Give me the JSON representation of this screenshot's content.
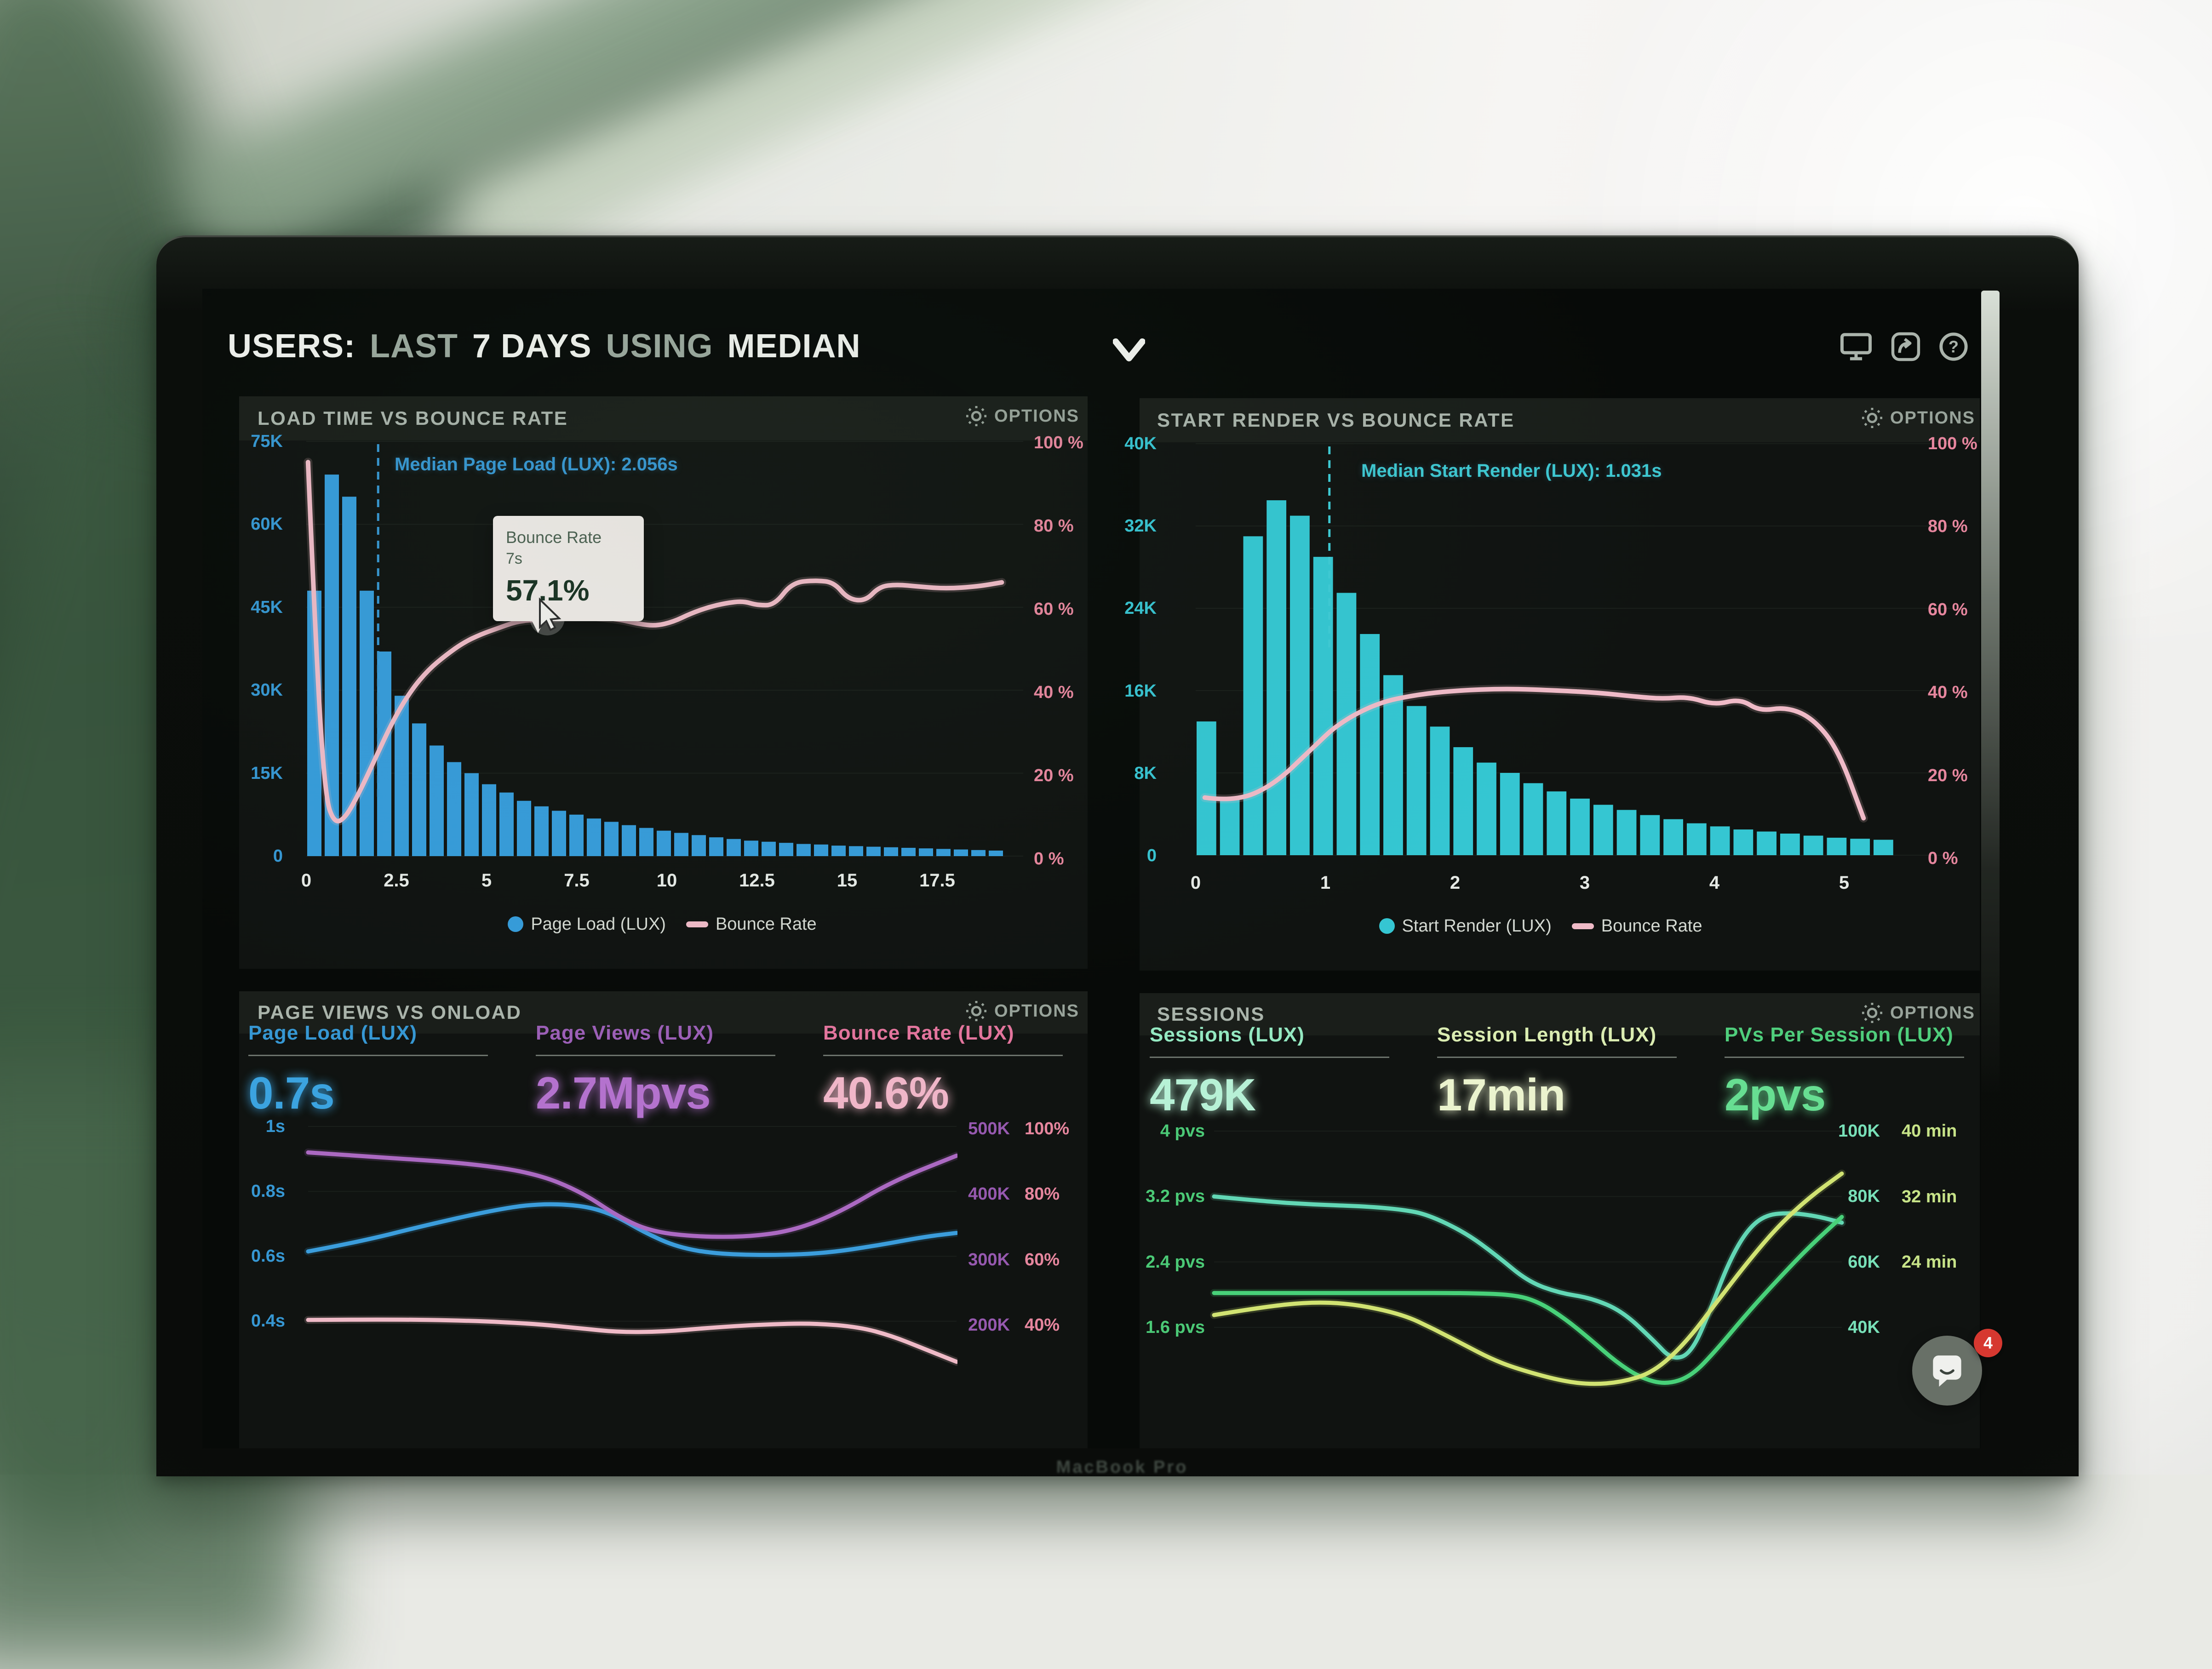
{
  "header": {
    "title_parts": [
      {
        "text": "USERS: ",
        "muted": false
      },
      {
        "text": "LAST ",
        "muted": true
      },
      {
        "text": "7 DAYS ",
        "muted": false
      },
      {
        "text": "USING ",
        "muted": true
      },
      {
        "text": "MEDIAN",
        "muted": false
      }
    ],
    "help_glyph": "?"
  },
  "panels": [
    {
      "title": "LOAD TIME VS BOUNCE RATE",
      "options_label": "OPTIONS",
      "annotation": "Median Page Load (LUX): 2.056s",
      "axis_left": [
        "75K",
        "60K",
        "45K",
        "30K",
        "15K",
        "0"
      ],
      "axis_right": [
        "100 %",
        "80 %",
        "60 %",
        "40 %",
        "20 %",
        "0 %"
      ],
      "axis_x": [
        "0",
        "2.5",
        "5",
        "7.5",
        "10",
        "12.5",
        "15",
        "17.5"
      ],
      "legend": [
        {
          "label": "Page Load (LUX)",
          "swatch": "dot",
          "color": "#2a9fe6"
        },
        {
          "label": "Bounce Rate",
          "swatch": "dash",
          "color": "#f7bac9"
        }
      ],
      "tooltip": {
        "title": "Bounce Rate",
        "x_value": "7s",
        "value": "57.1%"
      }
    },
    {
      "title": "START RENDER VS BOUNCE RATE",
      "options_label": "OPTIONS",
      "annotation": "Median Start Render (LUX): 1.031s",
      "axis_left": [
        "40K",
        "32K",
        "24K",
        "16K",
        "8K",
        "0"
      ],
      "axis_right": [
        "100 %",
        "80 %",
        "60 %",
        "40 %",
        "20 %",
        "0 %"
      ],
      "axis_x": [
        "0",
        "1",
        "2",
        "3",
        "4",
        "5"
      ],
      "legend": [
        {
          "label": "Start Render (LUX)",
          "swatch": "dot",
          "color": "#25ccd9"
        },
        {
          "label": "Bounce Rate",
          "swatch": "dash",
          "color": "#f7bac9"
        }
      ]
    },
    {
      "title": "PAGE VIEWS VS ONLOAD",
      "options_label": "OPTIONS",
      "metrics": [
        {
          "label": "Page Load (LUX)",
          "value": "0.7s",
          "lc": "#2b9ade",
          "vc": "#2fa6ec"
        },
        {
          "label": "Page Views (LUX)",
          "value": "2.7Mpvs",
          "lc": "#a05cc0",
          "vc": "#bb6fd9"
        },
        {
          "label": "Bounce Rate (LUX)",
          "value": "40.6%",
          "lc": "#f0729f",
          "vc": "#f9b6cb"
        }
      ],
      "axis_left": [
        "1s",
        "0.8s",
        "0.6s",
        "0.4s"
      ],
      "axis_right_k": [
        "500K",
        "400K",
        "300K",
        "200K"
      ],
      "axis_right_pct": [
        "100%",
        "80%",
        "60%",
        "40%"
      ]
    },
    {
      "title": "SESSIONS",
      "options_label": "OPTIONS",
      "metrics": [
        {
          "label": "Sessions (LUX)",
          "value": "479K",
          "lc": "#8deec1",
          "vc": "#b4f6d7"
        },
        {
          "label": "Session Length (LUX)",
          "value": "17min",
          "lc": "#dcf0ad",
          "vc": "#eef7cd"
        },
        {
          "label": "PVs Per Session (LUX)",
          "value": "2pvs",
          "lc": "#43d476",
          "vc": "#5ce48e"
        }
      ],
      "axis_left": [
        "4 pvs",
        "3.2 pvs",
        "2.4 pvs",
        "1.6 pvs"
      ],
      "axis_right_k": [
        "100K",
        "80K",
        "60K",
        "40K"
      ],
      "axis_right_min": [
        "40 min",
        "32 min",
        "24 min"
      ]
    }
  ],
  "chat": {
    "badge": "4"
  },
  "bezel": {
    "text": "MacBook Pro"
  },
  "chart_data": [
    {
      "type": "bar",
      "title": "LOAD TIME VS BOUNCE RATE",
      "x_unit": "seconds",
      "xlim": [
        0,
        20
      ],
      "x_ticks": [
        0,
        2.5,
        5,
        7.5,
        10,
        12.5,
        15,
        17.5
      ],
      "y_left": {
        "label": "Page Load (LUX) sessions",
        "max": 75000,
        "ticks": [
          75000,
          60000,
          45000,
          30000,
          15000,
          0
        ]
      },
      "y_right": {
        "label": "Bounce Rate %",
        "max": 100,
        "ticks": [
          100,
          80,
          60,
          40,
          20,
          0
        ]
      },
      "bars": {
        "name": "Page Load (LUX)",
        "color": "#2a9fe6",
        "bin_width_s": 0.5,
        "values_thousands": [
          48,
          69,
          65,
          48,
          37,
          29,
          24,
          20,
          17,
          15,
          13,
          11.5,
          10,
          9,
          8.2,
          7.5,
          6.8,
          6.2,
          5.6,
          5.1,
          4.6,
          4.2,
          3.8,
          3.4,
          3.1,
          2.8,
          2.6,
          2.4,
          2.2,
          2.1,
          1.9,
          1.8,
          1.7,
          1.6,
          1.5,
          1.4,
          1.3,
          1.2,
          1.1,
          1.0
        ]
      },
      "line": {
        "name": "Bounce Rate",
        "color": "#f7bac9",
        "points_s_pct": [
          [
            0.05,
            95
          ],
          [
            0.3,
            45
          ],
          [
            0.55,
            14
          ],
          [
            0.8,
            8
          ],
          [
            1.1,
            9
          ],
          [
            1.5,
            15
          ],
          [
            2,
            24
          ],
          [
            2.5,
            33
          ],
          [
            3,
            40
          ],
          [
            3.5,
            45
          ],
          [
            4,
            48.5
          ],
          [
            4.5,
            51.5
          ],
          [
            5,
            53.5
          ],
          [
            5.5,
            55
          ],
          [
            6,
            56.5
          ],
          [
            6.5,
            57
          ],
          [
            7,
            57.1
          ],
          [
            7.5,
            58
          ],
          [
            8,
            58
          ],
          [
            8.5,
            57.5
          ],
          [
            9,
            57
          ],
          [
            9.5,
            56
          ],
          [
            10,
            55.5
          ],
          [
            10.5,
            56.5
          ],
          [
            11,
            58.5
          ],
          [
            11.5,
            60
          ],
          [
            12,
            61
          ],
          [
            12.5,
            61.5
          ],
          [
            12.9,
            60.5
          ],
          [
            13.4,
            60.5
          ],
          [
            13.9,
            66
          ],
          [
            14.6,
            66.5
          ],
          [
            15.1,
            66
          ],
          [
            15.5,
            62
          ],
          [
            16,
            61.5
          ],
          [
            16.4,
            65
          ],
          [
            16.9,
            65.5
          ],
          [
            17.5,
            65
          ],
          [
            18.3,
            64.5
          ],
          [
            19.2,
            65
          ],
          [
            19.9,
            66
          ]
        ]
      },
      "median": {
        "x_s": 2.056,
        "label": "Median Page Load (LUX): 2.056s",
        "color": "#2b9ade"
      },
      "tooltip": {
        "at": "7s",
        "value_pct": 57.1
      }
    },
    {
      "type": "bar",
      "title": "START RENDER VS BOUNCE RATE",
      "x_unit": "seconds",
      "xlim": [
        0,
        5.4
      ],
      "x_ticks": [
        0,
        1,
        2,
        3,
        4,
        5
      ],
      "y_left": {
        "label": "Start Render (LUX) sessions",
        "max": 40000,
        "ticks": [
          40000,
          32000,
          24000,
          16000,
          8000,
          0
        ]
      },
      "y_right": {
        "label": "Bounce Rate %",
        "max": 100,
        "ticks": [
          100,
          80,
          60,
          40,
          20,
          0
        ]
      },
      "bars": {
        "name": "Start Render (LUX)",
        "color": "#25ccd9",
        "bin_width_s": 0.18,
        "values_thousands": [
          13,
          5.5,
          31,
          34.5,
          33,
          29,
          25.5,
          21.5,
          17.5,
          14.5,
          12.5,
          10.5,
          9,
          8,
          7,
          6.2,
          5.5,
          4.9,
          4.4,
          3.9,
          3.5,
          3.1,
          2.8,
          2.5,
          2.3,
          2.1,
          1.9,
          1.7,
          1.6,
          1.5
        ]
      },
      "line": {
        "name": "Bounce Rate",
        "color": "#f7bac9",
        "points_s_pct": [
          [
            0.07,
            14
          ],
          [
            0.3,
            13
          ],
          [
            0.6,
            17
          ],
          [
            0.9,
            26
          ],
          [
            1.1,
            32
          ],
          [
            1.4,
            37
          ],
          [
            1.7,
            39
          ],
          [
            2,
            40
          ],
          [
            2.4,
            40.5
          ],
          [
            2.8,
            40
          ],
          [
            3.1,
            39.5
          ],
          [
            3.4,
            38.5
          ],
          [
            3.6,
            38
          ],
          [
            3.8,
            38.5
          ],
          [
            4.0,
            36.5
          ],
          [
            4.2,
            38
          ],
          [
            4.35,
            35
          ],
          [
            4.55,
            36
          ],
          [
            4.75,
            33.5
          ],
          [
            4.95,
            26
          ],
          [
            5.15,
            9
          ]
        ]
      },
      "median": {
        "x_s": 1.031,
        "label": "Median Start Render (LUX): 1.031s",
        "color": "#2fd0dc"
      }
    },
    {
      "type": "line",
      "title": "PAGE VIEWS VS ONLOAD",
      "x_axis": "time (tick labels cropped out of view)",
      "y_left": {
        "ticks": [
          "1s",
          "0.8s",
          "0.6s",
          "0.4s"
        ]
      },
      "y_right": {
        "ticks_k": [
          "500K",
          "400K",
          "300K",
          "200K"
        ],
        "ticks_pct": [
          "100%",
          "80%",
          "60%",
          "40%"
        ]
      },
      "series": [
        {
          "name": "Page Load (LUX)",
          "axis": "seconds",
          "color": "#2fa0e8",
          "points": [
            [
              0,
              0.615
            ],
            [
              0.08,
              0.645
            ],
            [
              0.18,
              0.695
            ],
            [
              0.28,
              0.74
            ],
            [
              0.35,
              0.762
            ],
            [
              0.42,
              0.758
            ],
            [
              0.47,
              0.73
            ],
            [
              0.52,
              0.672
            ],
            [
              0.57,
              0.628
            ],
            [
              0.63,
              0.607
            ],
            [
              0.72,
              0.603
            ],
            [
              0.8,
              0.61
            ],
            [
              0.88,
              0.634
            ],
            [
              0.95,
              0.66
            ],
            [
              1,
              0.672
            ]
          ]
        },
        {
          "name": "Page Views (LUX)",
          "axis": "thousands",
          "color": "#b266cc",
          "points": [
            [
              0,
              460
            ],
            [
              0.12,
              452
            ],
            [
              0.25,
              443
            ],
            [
              0.35,
              428
            ],
            [
              0.42,
              400
            ],
            [
              0.48,
              360
            ],
            [
              0.53,
              338
            ],
            [
              0.6,
              330
            ],
            [
              0.68,
              330
            ],
            [
              0.75,
              340
            ],
            [
              0.82,
              368
            ],
            [
              0.9,
              415
            ],
            [
              1,
              455
            ]
          ]
        },
        {
          "name": "Bounce Rate (LUX)",
          "axis": "percent",
          "color": "#f7bac9",
          "points": [
            [
              0,
              40.4
            ],
            [
              0.12,
              40.6
            ],
            [
              0.25,
              40.2
            ],
            [
              0.35,
              39.2
            ],
            [
              0.42,
              37.8
            ],
            [
              0.48,
              36.6
            ],
            [
              0.55,
              36.8
            ],
            [
              0.62,
              38
            ],
            [
              0.7,
              39
            ],
            [
              0.78,
              39.4
            ],
            [
              0.85,
              38.2
            ],
            [
              0.9,
              35.5
            ],
            [
              0.95,
              31.5
            ],
            [
              1,
              27.5
            ]
          ]
        }
      ]
    },
    {
      "type": "line",
      "title": "SESSIONS",
      "x_axis": "time (tick labels cropped out of view)",
      "y_left": {
        "ticks": [
          "4 pvs",
          "3.2 pvs",
          "2.4 pvs",
          "1.6 pvs"
        ]
      },
      "y_right": {
        "ticks_k": [
          "100K",
          "80K",
          "60K",
          "40K"
        ],
        "ticks_min": [
          "40 min",
          "32 min",
          "24 min"
        ]
      },
      "series": [
        {
          "name": "Sessions (LUX)",
          "axis": "thousands",
          "color": "#57ddb6",
          "points": [
            [
              0,
              80
            ],
            [
              0.08,
              78.5
            ],
            [
              0.16,
              77.5
            ],
            [
              0.24,
              77
            ],
            [
              0.3,
              76
            ],
            [
              0.34,
              74.5
            ],
            [
              0.4,
              69
            ],
            [
              0.45,
              62
            ],
            [
              0.5,
              54
            ],
            [
              0.55,
              50.5
            ],
            [
              0.6,
              49
            ],
            [
              0.65,
              45
            ],
            [
              0.7,
              36
            ],
            [
              0.73,
              30
            ],
            [
              0.76,
              32
            ],
            [
              0.79,
              45
            ],
            [
              0.82,
              60
            ],
            [
              0.85,
              70
            ],
            [
              0.88,
              74.5
            ],
            [
              0.92,
              75
            ],
            [
              0.96,
              74
            ],
            [
              1,
              72
            ]
          ]
        },
        {
          "name": "PVs Per Session (LUX)",
          "axis": "pvs",
          "color": "#3bd873",
          "points": [
            [
              0,
              2.02
            ],
            [
              0.1,
              2.02
            ],
            [
              0.2,
              2.02
            ],
            [
              0.3,
              2.02
            ],
            [
              0.4,
              2.02
            ],
            [
              0.48,
              2.0
            ],
            [
              0.52,
              1.9
            ],
            [
              0.56,
              1.7
            ],
            [
              0.6,
              1.45
            ],
            [
              0.64,
              1.18
            ],
            [
              0.68,
              0.98
            ],
            [
              0.72,
              0.9
            ],
            [
              0.76,
              1.0
            ],
            [
              0.8,
              1.32
            ],
            [
              0.85,
              1.78
            ],
            [
              0.9,
              2.2
            ],
            [
              0.95,
              2.6
            ],
            [
              1,
              2.95
            ]
          ]
        },
        {
          "name": "Session Length (LUX)",
          "axis": "minutes",
          "color": "#d3e766",
          "points": [
            [
              0,
              17.5
            ],
            [
              0.07,
              18.4
            ],
            [
              0.15,
              19.1
            ],
            [
              0.22,
              18.9
            ],
            [
              0.3,
              17.6
            ],
            [
              0.35,
              15.8
            ],
            [
              0.4,
              13.8
            ],
            [
              0.44,
              12.2
            ],
            [
              0.48,
              11
            ],
            [
              0.55,
              9.5
            ],
            [
              0.6,
              9
            ],
            [
              0.65,
              9.3
            ],
            [
              0.7,
              10.5
            ],
            [
              0.75,
              14
            ],
            [
              0.8,
              19
            ],
            [
              0.85,
              24
            ],
            [
              0.9,
              28.5
            ],
            [
              0.95,
              32
            ],
            [
              1,
              34.8
            ]
          ]
        }
      ]
    }
  ]
}
